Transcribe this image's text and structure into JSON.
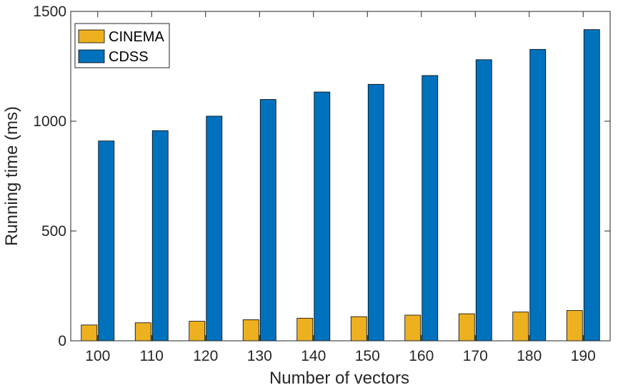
{
  "chart_data": {
    "type": "bar",
    "title": "",
    "xlabel": "Number of vectors",
    "ylabel": "Running time (ms)",
    "categories": [
      "100",
      "110",
      "120",
      "130",
      "140",
      "150",
      "160",
      "170",
      "180",
      "190"
    ],
    "series": [
      {
        "name": "CINEMA",
        "color": "#EDB120",
        "values": [
          72,
          82,
          89,
          96,
          103,
          110,
          117,
          123,
          131,
          138
        ]
      },
      {
        "name": "CDSS",
        "color": "#0072BD",
        "values": [
          910,
          957,
          1023,
          1099,
          1133,
          1168,
          1208,
          1280,
          1327,
          1417
        ]
      }
    ],
    "ylim": [
      0,
      1500
    ],
    "yticks": [
      0,
      500,
      1000,
      1500
    ],
    "grid": false,
    "legend_position": "top-left"
  }
}
